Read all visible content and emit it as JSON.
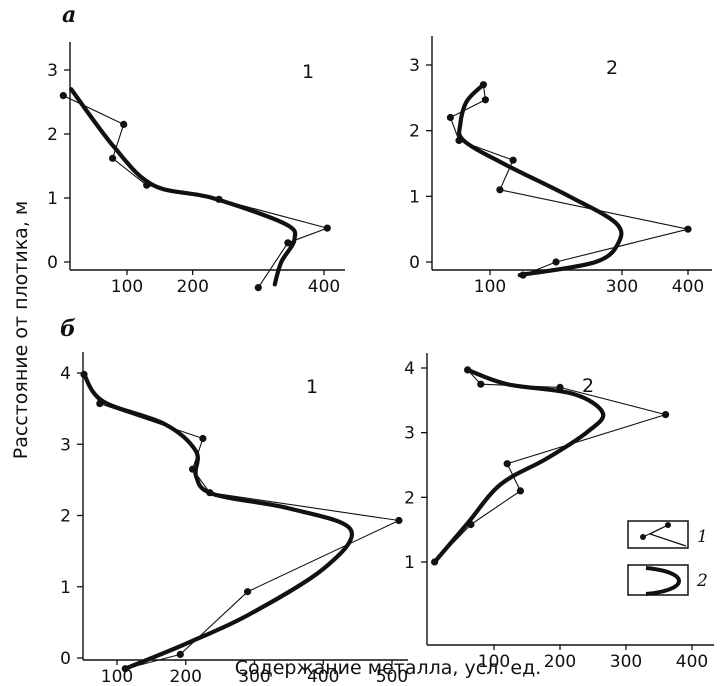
{
  "figure": {
    "section_labels": [
      "а",
      "б"
    ],
    "y_axis_label": "Расстояние от плотика, м",
    "x_axis_label": "Содержание металла, усл. ед.",
    "legend": [
      {
        "key": "1",
        "style": "thin polyline with points"
      },
      {
        "key": "2",
        "style": "thick smooth curve"
      }
    ],
    "line_color": "#111111"
  },
  "chart_data": [
    {
      "id": "a1",
      "type": "line",
      "section": "а",
      "panel_label": "1",
      "xticks": [
        100,
        200,
        400
      ],
      "yticks": [
        0,
        1,
        2,
        3
      ],
      "xlim": [
        0,
        450
      ],
      "ylim": [
        -0.35,
        3.3
      ],
      "series": [
        {
          "legend_key": "1",
          "style": "thin",
          "points": [
            [
              3,
              2.6
            ],
            [
              95,
              2.15
            ],
            [
              78,
              1.62
            ],
            [
              130,
              1.2
            ],
            [
              240,
              0.98
            ],
            [
              405,
              0.53
            ],
            [
              345,
              0.3
            ],
            [
              300,
              -0.4
            ]
          ]
        },
        {
          "legend_key": "2",
          "style": "thick",
          "points": [
            [
              15,
              2.7
            ],
            [
              80,
              1.8
            ],
            [
              140,
              1.2
            ],
            [
              230,
              1.0
            ],
            [
              340,
              0.6
            ],
            [
              355,
              0.35
            ],
            [
              335,
              0.0
            ],
            [
              325,
              -0.35
            ]
          ]
        }
      ]
    },
    {
      "id": "a2",
      "type": "line",
      "section": "а",
      "panel_label": "2",
      "xticks": [
        100,
        300,
        400
      ],
      "yticks": [
        0,
        1,
        2,
        3
      ],
      "xlim": [
        0,
        430
      ],
      "ylim": [
        -0.3,
        3.3
      ],
      "series": [
        {
          "legend_key": "1",
          "style": "thin",
          "points": [
            [
              90,
              2.7
            ],
            [
              93,
              2.47
            ],
            [
              40,
              2.2
            ],
            [
              53,
              1.85
            ],
            [
              135,
              1.55
            ],
            [
              115,
              1.1
            ],
            [
              400,
              0.5
            ],
            [
              200,
              0.0
            ],
            [
              150,
              -0.2
            ]
          ]
        },
        {
          "legend_key": "2",
          "style": "thick",
          "points": [
            [
              90,
              2.7
            ],
            [
              65,
              2.45
            ],
            [
              55,
              2.1
            ],
            [
              60,
              1.85
            ],
            [
              120,
              1.5
            ],
            [
              220,
              1.0
            ],
            [
              290,
              0.6
            ],
            [
              295,
              0.3
            ],
            [
              260,
              0.0
            ],
            [
              145,
              -0.2
            ]
          ]
        }
      ]
    },
    {
      "id": "b1",
      "type": "line",
      "section": "б",
      "panel_label": "1",
      "xticks": [
        100,
        200,
        300,
        400,
        500
      ],
      "yticks": [
        0,
        1,
        2,
        3,
        4
      ],
      "xlim": [
        40,
        520
      ],
      "ylim": [
        -0.2,
        4.2
      ],
      "series": [
        {
          "legend_key": "1",
          "style": "thin",
          "points": [
            [
              52,
              3.98
            ],
            [
              75,
              3.57
            ],
            [
              225,
              3.08
            ],
            [
              210,
              2.65
            ],
            [
              235,
              2.32
            ],
            [
              510,
              1.93
            ],
            [
              290,
              0.93
            ],
            [
              192,
              0.05
            ],
            [
              112,
              -0.15
            ]
          ]
        },
        {
          "legend_key": "2",
          "style": "thick",
          "points": [
            [
              52,
              3.98
            ],
            [
              80,
              3.6
            ],
            [
              170,
              3.28
            ],
            [
              215,
              2.9
            ],
            [
              215,
              2.55
            ],
            [
              240,
              2.3
            ],
            [
              350,
              2.1
            ],
            [
              440,
              1.8
            ],
            [
              400,
              1.25
            ],
            [
              290,
              0.6
            ],
            [
              200,
              0.2
            ],
            [
              112,
              -0.15
            ]
          ]
        }
      ]
    },
    {
      "id": "b2",
      "type": "line",
      "section": "б",
      "panel_label": "2",
      "xticks": [
        100,
        200,
        300,
        400
      ],
      "yticks": [
        1,
        2,
        3,
        4
      ],
      "xlim": [
        0,
        440
      ],
      "ylim": [
        0.1,
        4.2
      ],
      "series": [
        {
          "legend_key": "1",
          "style": "thin",
          "points": [
            [
              60,
              3.97
            ],
            [
              80,
              3.75
            ],
            [
              200,
              3.7
            ],
            [
              360,
              3.28
            ],
            [
              120,
              2.52
            ],
            [
              140,
              2.1
            ],
            [
              65,
              1.58
            ],
            [
              10,
              1.0
            ]
          ]
        },
        {
          "legend_key": "2",
          "style": "thick",
          "points": [
            [
              60,
              3.97
            ],
            [
              120,
              3.75
            ],
            [
              220,
              3.6
            ],
            [
              265,
              3.3
            ],
            [
              240,
              3.0
            ],
            [
              180,
              2.6
            ],
            [
              110,
              2.2
            ],
            [
              60,
              1.6
            ],
            [
              10,
              1.0
            ]
          ]
        }
      ]
    }
  ]
}
